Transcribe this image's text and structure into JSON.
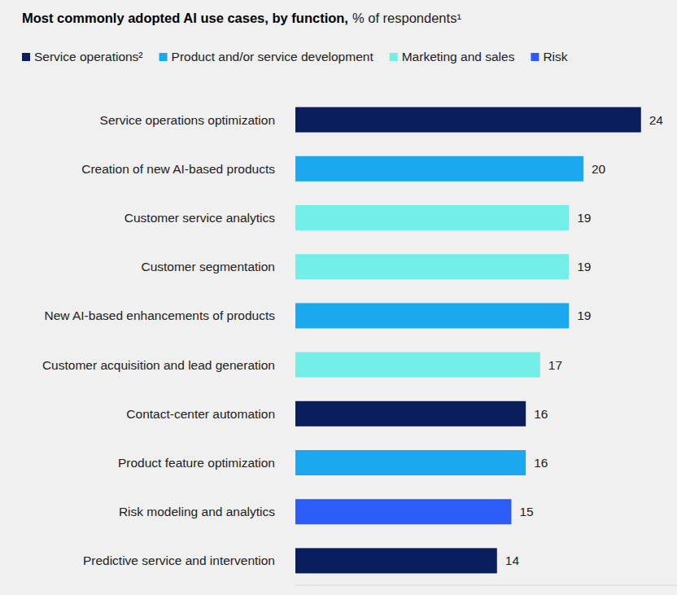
{
  "chart_data": {
    "type": "bar",
    "orientation": "horizontal",
    "stacked": true,
    "data_labels": true,
    "tick_labels": "y",
    "grid": false,
    "title": "Most commonly adopted AI use cases, by function,",
    "subtitle": "% of respondents¹",
    "categories": [
      "Service operations optimization",
      "Creation of new AI-based products",
      "Customer service analytics",
      "Customer segmentation",
      "New AI-based enhancements of products",
      "Customer acquisition and lead generation",
      "Contact-center automation",
      "Product feature optimization",
      "Risk modeling and analytics",
      "Predictive service and intervention"
    ],
    "xlim": [
      0,
      26.5
    ],
    "legend": "top",
    "series": [
      {
        "name": "Service operations²",
        "color": "#0a1d5c",
        "values": [
          24,
          null,
          null,
          null,
          null,
          null,
          16,
          null,
          null,
          14
        ]
      },
      {
        "name": "Product and/or service development",
        "color": "#1ba8ee",
        "values": [
          null,
          20,
          null,
          null,
          19,
          null,
          null,
          16,
          null,
          null
        ]
      },
      {
        "name": "Marketing and sales",
        "color": "#73efe7",
        "values": [
          null,
          null,
          19,
          19,
          null,
          17,
          null,
          null,
          null,
          null
        ]
      },
      {
        "name": "Risk",
        "color": "#2c5cf6",
        "values": [
          null,
          null,
          null,
          null,
          null,
          null,
          null,
          null,
          15,
          null
        ]
      }
    ]
  }
}
